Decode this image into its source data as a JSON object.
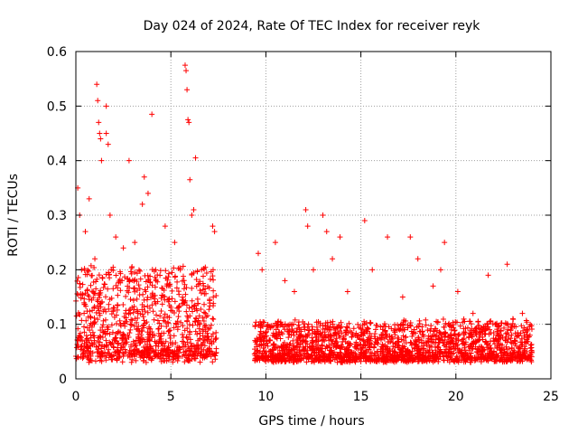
{
  "chart_data": {
    "type": "scatter",
    "title": "Day 024 of 2024, Rate Of TEC Index for receiver reyk",
    "xlabel": "GPS time / hours",
    "ylabel": "ROTI / TECUs",
    "xlim": [
      0,
      25
    ],
    "ylim": [
      0,
      0.6
    ],
    "xticks": [
      0,
      5,
      10,
      15,
      20,
      25
    ],
    "yticks": [
      0,
      0.1,
      0.2,
      0.3,
      0.4,
      0.5,
      0.6
    ],
    "grid": true,
    "marker": "+",
    "color": "#ff0000",
    "data_gap_hours": [
      7.4,
      9.4
    ],
    "series": [
      {
        "name": "ROTI",
        "points": [
          [
            0.1,
            0.35
          ],
          [
            0.2,
            0.3
          ],
          [
            0.3,
            0.2
          ],
          [
            0.5,
            0.27
          ],
          [
            0.7,
            0.33
          ],
          [
            1.0,
            0.22
          ],
          [
            1.1,
            0.54
          ],
          [
            1.15,
            0.51
          ],
          [
            1.2,
            0.47
          ],
          [
            1.25,
            0.45
          ],
          [
            1.3,
            0.44
          ],
          [
            1.35,
            0.4
          ],
          [
            1.6,
            0.5
          ],
          [
            1.6,
            0.45
          ],
          [
            1.7,
            0.43
          ],
          [
            1.8,
            0.3
          ],
          [
            2.1,
            0.26
          ],
          [
            2.5,
            0.24
          ],
          [
            2.8,
            0.4
          ],
          [
            3.1,
            0.25
          ],
          [
            3.5,
            0.32
          ],
          [
            3.6,
            0.37
          ],
          [
            3.8,
            0.34
          ],
          [
            4.0,
            0.485
          ],
          [
            4.2,
            0.2
          ],
          [
            4.7,
            0.28
          ],
          [
            5.2,
            0.25
          ],
          [
            5.5,
            0.2
          ],
          [
            5.75,
            0.575
          ],
          [
            5.8,
            0.565
          ],
          [
            5.85,
            0.53
          ],
          [
            5.9,
            0.475
          ],
          [
            5.95,
            0.47
          ],
          [
            6.0,
            0.365
          ],
          [
            6.1,
            0.3
          ],
          [
            6.2,
            0.31
          ],
          [
            6.3,
            0.405
          ],
          [
            7.2,
            0.28
          ],
          [
            7.3,
            0.27
          ],
          [
            9.6,
            0.23
          ],
          [
            9.8,
            0.2
          ],
          [
            10.5,
            0.25
          ],
          [
            11.0,
            0.18
          ],
          [
            11.5,
            0.16
          ],
          [
            12.1,
            0.31
          ],
          [
            12.2,
            0.28
          ],
          [
            12.5,
            0.2
          ],
          [
            13.0,
            0.3
          ],
          [
            13.2,
            0.27
          ],
          [
            13.5,
            0.22
          ],
          [
            13.9,
            0.26
          ],
          [
            14.3,
            0.16
          ],
          [
            15.2,
            0.29
          ],
          [
            15.6,
            0.2
          ],
          [
            16.4,
            0.26
          ],
          [
            17.2,
            0.15
          ],
          [
            17.6,
            0.26
          ],
          [
            18.0,
            0.22
          ],
          [
            18.8,
            0.17
          ],
          [
            19.2,
            0.2
          ],
          [
            19.4,
            0.25
          ],
          [
            20.1,
            0.16
          ],
          [
            20.9,
            0.12
          ],
          [
            21.7,
            0.19
          ],
          [
            22.1,
            0.1
          ],
          [
            22.7,
            0.21
          ],
          [
            23.0,
            0.11
          ],
          [
            23.5,
            0.12
          ],
          [
            23.9,
            0.08
          ]
        ]
      }
    ]
  }
}
